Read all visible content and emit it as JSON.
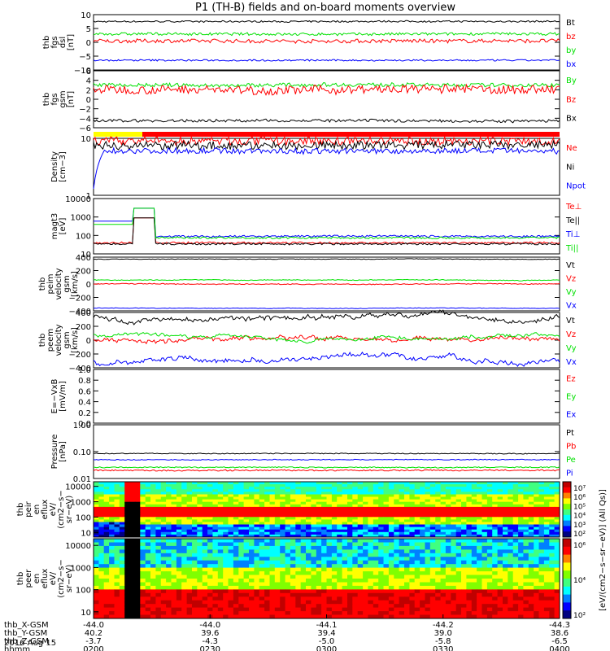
{
  "chart_data": {
    "type": "line",
    "title": "P1 (TH-B) fields and on-board moments overview",
    "date": "2016 Aug 15",
    "time_ticks": [
      "0200",
      "0230",
      "0300",
      "0330",
      "0400"
    ],
    "ephemeris": {
      "row_labels": [
        "thb_X-GSM",
        "thb_Y-GSM",
        "thb_Z-GSM",
        "hhmm"
      ],
      "rows": [
        [
          "-44.0",
          "-44.0",
          "-44.1",
          "-44.2",
          "-44.3"
        ],
        [
          "40.2",
          "39.6",
          "39.4",
          "39.0",
          "38.6"
        ],
        [
          "-3.7",
          "-4.3",
          "-5.0",
          "-5.8",
          "-6.5"
        ],
        [
          "0200",
          "0230",
          "0300",
          "0330",
          "0400"
        ]
      ]
    },
    "bar_colors": [
      "#ffff00",
      "#ff0000"
    ],
    "panels": [
      {
        "id": "fgs_dsl",
        "ylabel": "thb\nfgs\ndsl\n[nT]",
        "yticks": [
          "10",
          "5",
          "0",
          "−5",
          "−10"
        ],
        "ylim": [
          -10,
          10
        ],
        "series": [
          {
            "name": "Bt",
            "color": "#000000",
            "level": 7.5,
            "noise": 0.3,
            "drift": 0.5
          },
          {
            "name": "bz",
            "color": "#ff0000",
            "level": 0.5,
            "noise": 0.7,
            "drift": 0.5
          },
          {
            "name": "by",
            "color": "#00e000",
            "level": 3.0,
            "noise": 0.5,
            "drift": 0.5
          },
          {
            "name": "bx",
            "color": "#0000ff",
            "level": -6.5,
            "noise": 0.3,
            "drift": 0.3
          }
        ]
      },
      {
        "id": "fgs_gsm",
        "ylabel": "thb\nfgs\ngsm\n[nT]",
        "yticks": [
          "6",
          "4",
          "2",
          "0",
          "−2",
          "−4",
          "−6"
        ],
        "ylim": [
          -6,
          6
        ],
        "series": [
          {
            "name": "By",
            "color": "#00e000",
            "level": 3.0,
            "noise": 0.4,
            "drift": 0.5
          },
          {
            "name": "Bz",
            "color": "#ff0000",
            "level": 2.0,
            "noise": 0.9,
            "drift": 0.8
          },
          {
            "name": "Bx",
            "color": "#000000",
            "level": -4.5,
            "noise": 0.3,
            "drift": 0.8
          }
        ]
      },
      {
        "id": "density",
        "ylabel": "Density\n[cm−3]",
        "yticks": [
          "10",
          "1"
        ],
        "ylim": [
          1,
          10
        ],
        "log": true,
        "series": [
          {
            "name": "Ne",
            "color": "#ff0000",
            "level": 9.0,
            "noise": 0.15,
            "drift": 0.1
          },
          {
            "name": "Ni",
            "color": "#000000",
            "level": 7.5,
            "noise": 0.15,
            "drift": 0.1
          },
          {
            "name": "Npot",
            "color": "#0000ff",
            "level": 6.0,
            "noise": 0.1,
            "drift": 0.1
          }
        ]
      },
      {
        "id": "temperature",
        "ylabel": "magt3\n[eV]",
        "yticks": [
          "10000",
          "1000",
          "100",
          "10"
        ],
        "ylim": [
          10,
          10000
        ],
        "log": true,
        "series": [
          {
            "name": "Te⊥",
            "color": "#ff0000",
            "level": 40,
            "noise": 0.1,
            "drift": 0.05
          },
          {
            "name": "Te||",
            "color": "#000000",
            "level": 35,
            "noise": 0.1,
            "drift": 0.05
          },
          {
            "name": "Ti⊥",
            "color": "#0000ff",
            "level": 90,
            "noise": 0.1,
            "drift": 0.1
          },
          {
            "name": "Ti||",
            "color": "#00e000",
            "level": 75,
            "noise": 0.1,
            "drift": 0.1
          }
        ]
      },
      {
        "id": "peim_velocity",
        "ylabel": "thb\npeim\nvelocity\ngsm\n[km/s]",
        "yticks": [
          "400",
          "200",
          "0",
          "−200",
          "−400"
        ],
        "ylim": [
          -400,
          400
        ],
        "series": [
          {
            "name": "Vt",
            "color": "#000000",
            "level": 370,
            "noise": 4,
            "drift": 3
          },
          {
            "name": "Vz",
            "color": "#ff0000",
            "level": 0,
            "noise": 6,
            "drift": 4
          },
          {
            "name": "Vy",
            "color": "#00e000",
            "level": 60,
            "noise": 5,
            "drift": 4
          },
          {
            "name": "Vx",
            "color": "#0000ff",
            "level": -360,
            "noise": 4,
            "drift": 3
          }
        ]
      },
      {
        "id": "peem_velocity",
        "ylabel": "thb\npeem\nvelocity\ngsm\n[km/s]",
        "yticks": [
          "400",
          "200",
          "0",
          "−200",
          "−400"
        ],
        "ylim": [
          -400,
          400
        ],
        "series": [
          {
            "name": "Vt",
            "color": "#000000",
            "level": 340,
            "noise": 25,
            "drift": 10
          },
          {
            "name": "Vz",
            "color": "#ff0000",
            "level": 0,
            "noise": 25,
            "drift": 8
          },
          {
            "name": "Vy",
            "color": "#00e000",
            "level": 60,
            "noise": 20,
            "drift": 8
          },
          {
            "name": "Vx",
            "color": "#0000ff",
            "level": -320,
            "noise": 25,
            "drift": 10
          }
        ]
      },
      {
        "id": "efield",
        "ylabel": "E=−VxB\n[mV/m]",
        "yticks": [
          "1.0",
          "0.8",
          "0.6",
          "0.4",
          "0.2",
          "0.0"
        ],
        "ylim": [
          0,
          1
        ],
        "series": [
          {
            "name": "Ez",
            "color": "#ff0000"
          },
          {
            "name": "Ey",
            "color": "#00e000"
          },
          {
            "name": "Ex",
            "color": "#0000ff"
          }
        ]
      },
      {
        "id": "pressure",
        "ylabel": "Pressure\n[nPa]",
        "yticks": [
          "1.00",
          "0.10",
          "0.01"
        ],
        "ylim": [
          0.01,
          1
        ],
        "log": true,
        "series": [
          {
            "name": "Pt",
            "color": "#000000",
            "level": 0.085,
            "noise": 0.03,
            "drift": 0.03
          },
          {
            "name": "Pb",
            "color": "#ff0000",
            "level": 0.02,
            "noise": 0.05,
            "drift": 0.05
          },
          {
            "name": "Pe",
            "color": "#00e000",
            "level": 0.026,
            "noise": 0.04,
            "drift": 0.04
          },
          {
            "name": "Pi",
            "color": "#0000ff",
            "level": 0.05,
            "noise": 0.03,
            "drift": 0.03
          }
        ]
      }
    ],
    "spectrograms": [
      {
        "id": "peir_en_eflux",
        "ylabel": "thb\npeir\nen\neflux\neV/\n(cm2−s−\nsr−eV)",
        "yticks": [
          "10000",
          "1000",
          "100",
          "10"
        ],
        "ylim": [
          5,
          20000
        ]
      },
      {
        "id": "peer_en_eflux",
        "ylabel": "thb\npeer\nen\neflux\neV/\n(cm2−s−\nsr−eV)",
        "yticks": [
          "10000",
          "1000",
          "100",
          "10"
        ],
        "ylim": [
          5,
          20000
        ]
      }
    ],
    "colorbars": [
      {
        "ticks": [
          "10⁷",
          "10⁶",
          "10⁵",
          "10⁴",
          "10³",
          "10²"
        ]
      },
      {
        "ticks": [
          "10⁶",
          "10⁴",
          "10²"
        ]
      }
    ],
    "colorbar_label": "[eV/(cm2−s−sr−eV)] (All Qs)]"
  }
}
